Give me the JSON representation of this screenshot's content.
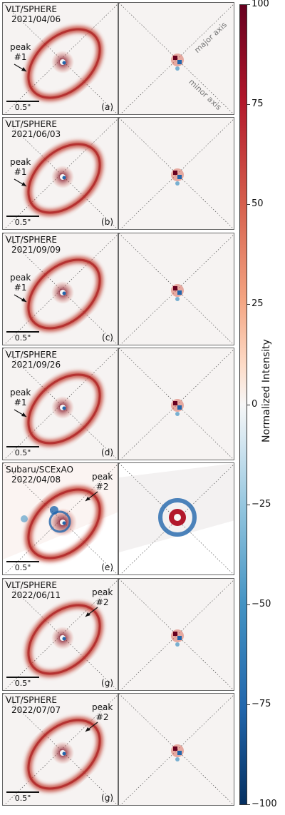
{
  "panels": [
    {
      "instrument": "VLT/SPHERE",
      "date": "2021/04/06",
      "peak": "peak\n#1",
      "peak_side": "left",
      "tag": "(a)",
      "scale": "0.5\"",
      "show_axes": true
    },
    {
      "instrument": "VLT/SPHERE",
      "date": "2021/06/03",
      "peak": "peak\n#1",
      "peak_side": "left",
      "tag": "(b)",
      "scale": "0.5\"",
      "show_axes": false
    },
    {
      "instrument": "VLT/SPHERE",
      "date": "2021/09/09",
      "peak": "peak\n#1",
      "peak_side": "left",
      "tag": "(c)",
      "scale": "0.5\"",
      "show_axes": false
    },
    {
      "instrument": "VLT/SPHERE",
      "date": "2021/09/26",
      "peak": "peak\n#1",
      "peak_side": "left",
      "tag": "(d)",
      "scale": "0.5\"",
      "show_axes": false
    },
    {
      "instrument": "Subaru/SCExAO",
      "date": "2022/04/08",
      "peak": "peak\n#2",
      "peak_side": "right",
      "tag": "(e)",
      "scale": "0.5\"",
      "show_axes": false
    },
    {
      "instrument": "VLT/SPHERE",
      "date": "2022/06/11",
      "peak": "peak\n#2",
      "peak_side": "right",
      "tag": "(g)",
      "scale": "0.5\"",
      "show_axes": false
    },
    {
      "instrument": "VLT/SPHERE",
      "date": "2022/07/07",
      "peak": "peak\n#2",
      "peak_side": "right",
      "tag": "(g)",
      "scale": "0.5\"",
      "show_axes": false
    }
  ],
  "axis_labels": {
    "major": "major axis",
    "minor": "minor axis"
  },
  "colorbar": {
    "title": "Normalized Intensity",
    "min": -100,
    "max": 100,
    "ticks": [
      "100",
      "75",
      "50",
      "25",
      "0",
      "−25",
      "−50",
      "−75",
      "−100"
    ],
    "colormap": "RdBu_r",
    "colors": {
      "max": "#67001f",
      "zero": "#f7f7f7",
      "min": "#053061"
    }
  }
}
